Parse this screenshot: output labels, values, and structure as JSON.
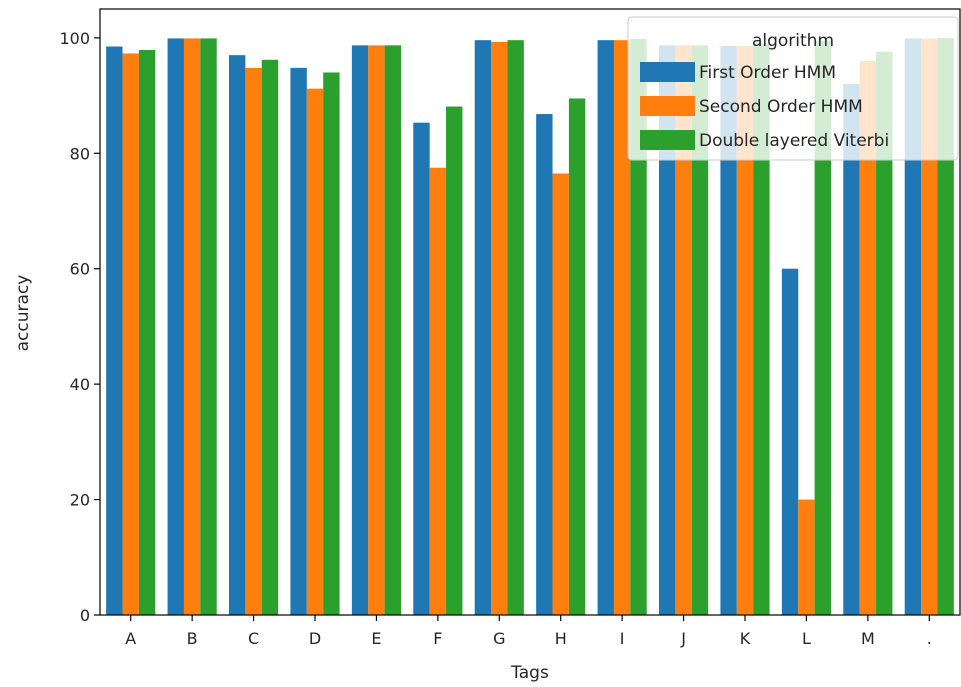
{
  "chart_data": {
    "type": "bar",
    "xlabel": "Tags",
    "ylabel": "accuracy",
    "ylim": [
      0,
      105
    ],
    "yticks": [
      0,
      20,
      40,
      60,
      80,
      100
    ],
    "categories": [
      "A",
      "B",
      "C",
      "D",
      "E",
      "F",
      "G",
      "H",
      "I",
      "J",
      "K",
      "L",
      "M",
      "."
    ],
    "series": [
      {
        "name": "First Order HMM",
        "color": "#1f77b4",
        "values": [
          98.5,
          99.9,
          97.0,
          94.8,
          98.7,
          85.3,
          99.6,
          86.8,
          99.6,
          98.7,
          98.6,
          60.0,
          92.0,
          99.9
        ]
      },
      {
        "name": "Second Order HMM",
        "color": "#ff7f0e",
        "values": [
          97.3,
          99.9,
          94.8,
          91.2,
          98.7,
          77.5,
          99.3,
          76.5,
          99.6,
          98.7,
          98.6,
          20.0,
          96.0,
          99.9
        ]
      },
      {
        "name": "Double layered Viterbi",
        "color": "#2ca02c",
        "values": [
          97.9,
          99.9,
          96.2,
          94.0,
          98.7,
          88.1,
          99.6,
          89.5,
          99.8,
          98.7,
          99.0,
          99.5,
          97.6,
          100.0
        ]
      }
    ],
    "legend": {
      "title": "algorithm",
      "position": "top-right"
    },
    "grid": false
  }
}
